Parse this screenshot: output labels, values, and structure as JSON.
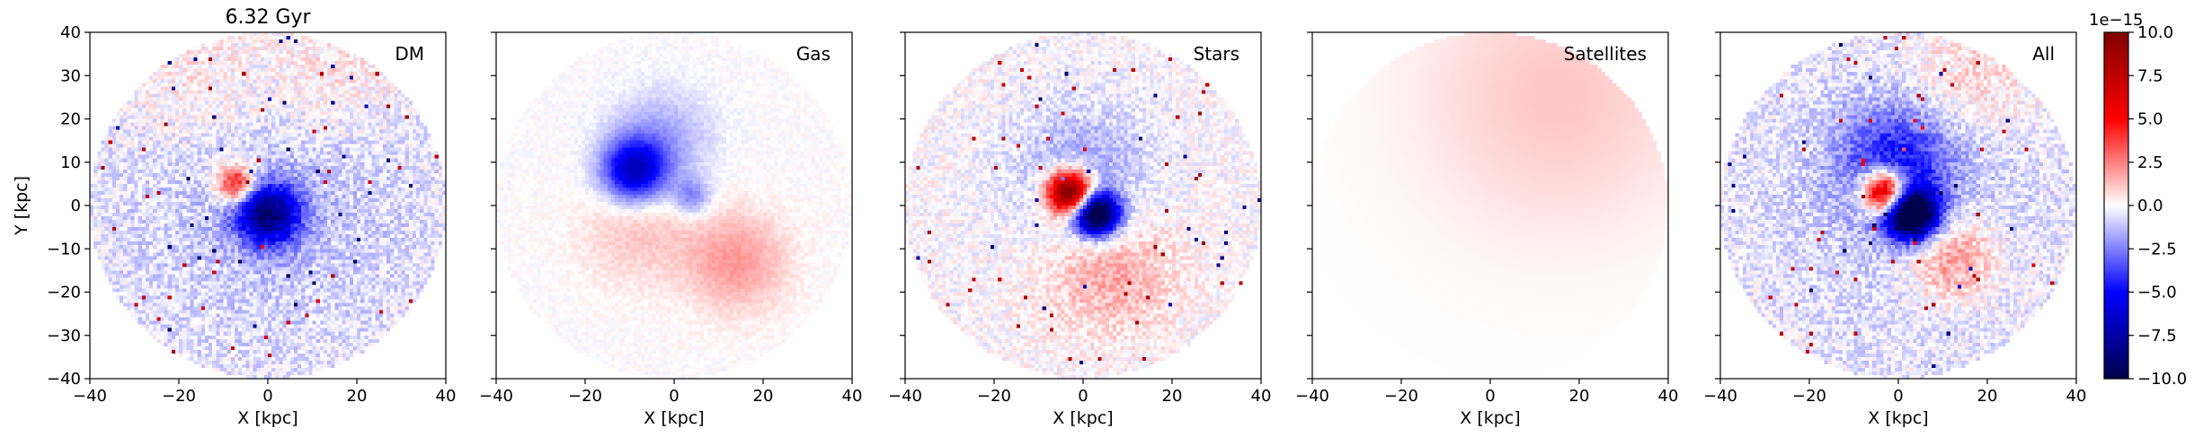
{
  "figure": {
    "colorbar": {
      "exponent_label": "1e−15",
      "ticks": [
        "10.0",
        "7.5",
        "5.0",
        "2.5",
        "0.0",
        "−2.5",
        "−5.0",
        "−7.5",
        "−10.0"
      ],
      "min": -10.0,
      "max": 10.0,
      "colormap": "seismic",
      "colors": {
        "low": "#00004c",
        "blue": "#0000ff",
        "mid": "#ffffff",
        "red": "#ff0000",
        "high": "#800000"
      }
    }
  },
  "chart_data": [
    {
      "type": "heatmap",
      "title": "6.32 Gyr",
      "panel_label": "DM",
      "xlabel": "X [kpc]",
      "ylabel": "Y [kpc]",
      "xlim": [
        -40,
        40
      ],
      "ylim": [
        -40,
        40
      ],
      "xticks": [
        "−40",
        "−20",
        "0",
        "20",
        "40"
      ],
      "yticks": [
        "40",
        "30",
        "20",
        "10",
        "0",
        "−10",
        "−20",
        "−30",
        "−40"
      ],
      "map_extent_radius_kpc": 40,
      "features": [
        {
          "x": 0,
          "y": -2,
          "sigma": 5,
          "value": -8.0
        },
        {
          "x": -7,
          "y": 5,
          "sigma": 3,
          "value": 6.0
        },
        {
          "x": 0,
          "y": 0,
          "sigma": 28,
          "value": -1.2
        },
        {
          "x": -15,
          "y": 28,
          "sigma": 12,
          "value": 0.9
        },
        {
          "x": 15,
          "y": 30,
          "sigma": 10,
          "value": 1.0
        }
      ],
      "noise": 1.0
    },
    {
      "type": "heatmap",
      "panel_label": "Gas",
      "xlabel": "X [kpc]",
      "xlim": [
        -40,
        40
      ],
      "ylim": [
        -40,
        40
      ],
      "xticks": [
        "−40",
        "−20",
        "0",
        "20",
        "40"
      ],
      "map_extent_radius_kpc": 40,
      "features": [
        {
          "x": -9,
          "y": 8,
          "sigma": 5,
          "value": -6.5
        },
        {
          "x": -3,
          "y": 15,
          "sigma": 8,
          "value": -1.8
        },
        {
          "x": 14,
          "y": -13,
          "sigma": 8,
          "value": 2.0
        },
        {
          "x": -8,
          "y": -5,
          "sigma": 9,
          "value": 1.2
        },
        {
          "x": 4,
          "y": 2,
          "sigma": 3,
          "value": -2.5
        }
      ],
      "noise": 0.3
    },
    {
      "type": "heatmap",
      "panel_label": "Stars",
      "xlabel": "X [kpc]",
      "xlim": [
        -40,
        40
      ],
      "ylim": [
        -40,
        40
      ],
      "xticks": [
        "−40",
        "−20",
        "0",
        "20",
        "40"
      ],
      "map_extent_radius_kpc": 40,
      "features": [
        {
          "x": -3,
          "y": 3,
          "sigma": 3.5,
          "value": 12.0
        },
        {
          "x": 3,
          "y": -2,
          "sigma": 3.5,
          "value": -12.0
        },
        {
          "x": 0,
          "y": 8,
          "sigma": 11,
          "value": -1.8
        },
        {
          "x": 6,
          "y": -15,
          "sigma": 10,
          "value": 1.8
        }
      ],
      "noise": 0.8
    },
    {
      "type": "heatmap",
      "panel_label": "Satellites",
      "xlabel": "X [kpc]",
      "xlim": [
        -40,
        40
      ],
      "ylim": [
        -40,
        40
      ],
      "xticks": [
        "−40",
        "−20",
        "0",
        "20",
        "40"
      ],
      "map_extent_radius_kpc": 40,
      "features": [
        {
          "x": 15,
          "y": 25,
          "sigma": 22,
          "value": 1.1
        }
      ],
      "noise": 0.0
    },
    {
      "type": "heatmap",
      "panel_label": "All",
      "xlabel": "X [kpc]",
      "xlim": [
        -40,
        40
      ],
      "ylim": [
        -40,
        40
      ],
      "xticks": [
        "−40",
        "−20",
        "0",
        "20",
        "40"
      ],
      "map_extent_radius_kpc": 40,
      "features": [
        {
          "x": -3,
          "y": 3,
          "sigma": 3.5,
          "value": 11.0
        },
        {
          "x": 3,
          "y": -2,
          "sigma": 4,
          "value": -13.0
        },
        {
          "x": 0,
          "y": 10,
          "sigma": 9,
          "value": -4.0
        },
        {
          "x": 12,
          "y": -12,
          "sigma": 7,
          "value": 2.8
        },
        {
          "x": 15,
          "y": 28,
          "sigma": 10,
          "value": 1.2
        },
        {
          "x": 0,
          "y": 0,
          "sigma": 28,
          "value": -1.0
        }
      ],
      "noise": 1.0
    }
  ]
}
